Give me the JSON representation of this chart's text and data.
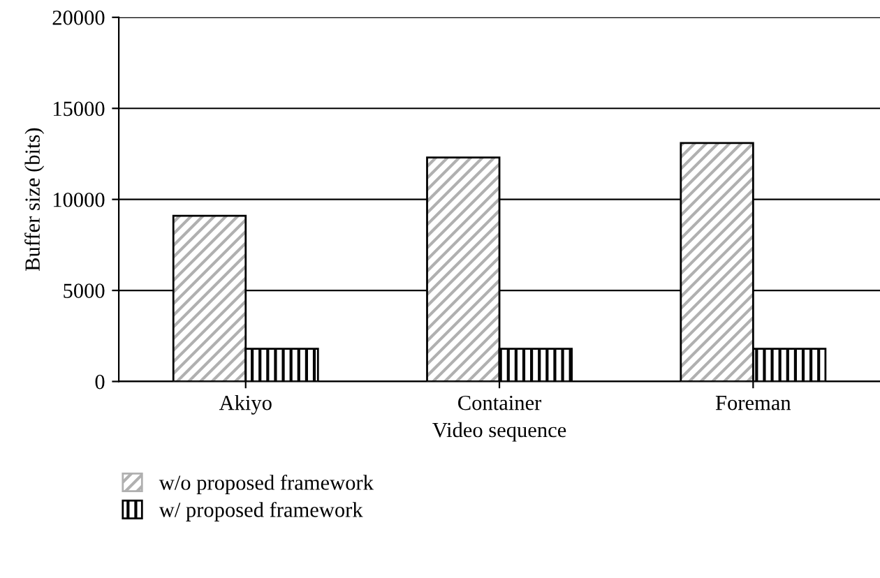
{
  "chart_data": {
    "type": "bar",
    "xlabel": "Video sequence",
    "ylabel": "Buffer size (bits)",
    "categories": [
      "Akiyo",
      "Container",
      "Foreman"
    ],
    "series": [
      {
        "name": "w/o proposed framework",
        "color": "#ffffff",
        "values": [
          9100,
          12300,
          13100
        ]
      },
      {
        "name": "w/ proposed framework",
        "color": "#ffffff",
        "values": [
          1800,
          1800,
          1800
        ]
      }
    ],
    "ylim": [
      0,
      20000
    ],
    "yticks": [
      0,
      5000,
      10000,
      15000,
      20000
    ],
    "grid": "y",
    "legend": "bottom"
  }
}
